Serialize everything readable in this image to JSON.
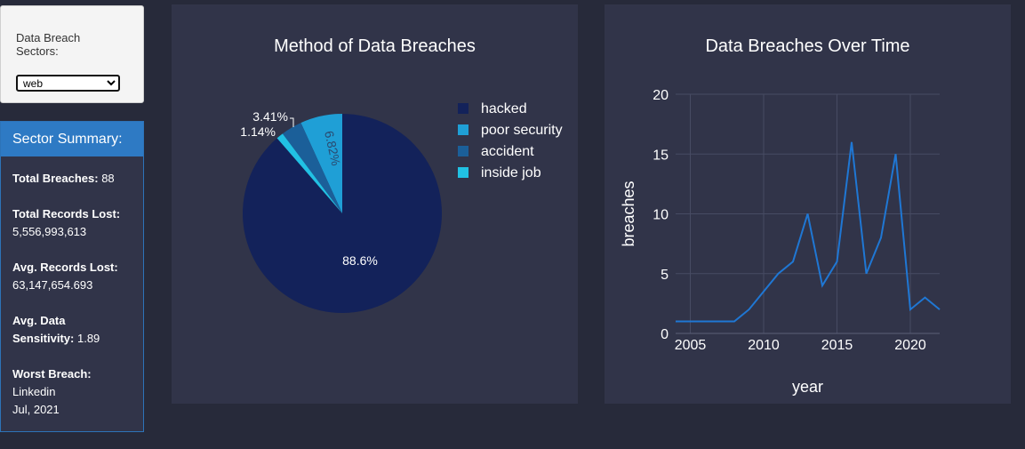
{
  "sector_selector": {
    "label": "Data Breach Sectors:",
    "options": [
      "web"
    ],
    "selected": "web"
  },
  "summary": {
    "title": "Sector Summary:",
    "total_breaches_label": "Total Breaches:",
    "total_breaches_value": "88",
    "total_records_label": "Total Records Lost:",
    "total_records_value": "5,556,993,613",
    "avg_records_label": "Avg. Records Lost:",
    "avg_records_value": "63,147,654.693",
    "avg_sensitivity_label_1": "Avg. Data",
    "avg_sensitivity_label_2": "Sensitivity:",
    "avg_sensitivity_value": "1.89",
    "worst_breach_label": "Worst Breach:",
    "worst_breach_name": "Linkedin",
    "worst_breach_date": "Jul, 2021"
  },
  "colors": {
    "background": "#272a3a",
    "panel": "#313449",
    "accent": "#2e7ac4",
    "line": "#1f77d4"
  },
  "chart_data": [
    {
      "type": "pie",
      "title": "Method of Data Breaches",
      "slices": [
        {
          "name": "hacked",
          "percent": 88.6,
          "label": "88.6%",
          "color": "#13225a"
        },
        {
          "name": "poor security",
          "percent": 6.82,
          "label": "6.82%",
          "color": "#1f9fd6"
        },
        {
          "name": "accident",
          "percent": 3.41,
          "label": "3.41%",
          "color": "#1b5f99"
        },
        {
          "name": "inside job",
          "percent": 1.14,
          "label": "1.14%",
          "color": "#21c1e4"
        }
      ],
      "legend_position": "top-right"
    },
    {
      "type": "line",
      "title": "Data Breaches Over Time",
      "xlabel": "year",
      "ylabel": "breaches",
      "x": [
        2004,
        2005,
        2006,
        2007,
        2008,
        2009,
        2010,
        2011,
        2012,
        2013,
        2014,
        2015,
        2016,
        2017,
        2018,
        2019,
        2020,
        2021,
        2022
      ],
      "y": [
        1,
        1,
        1,
        1,
        1,
        2,
        3.5,
        5,
        6,
        10,
        4,
        6,
        16,
        5,
        8,
        15,
        2,
        3,
        2
      ],
      "xlim": [
        2004,
        2022
      ],
      "ylim": [
        0,
        20
      ],
      "xticks": [
        2005,
        2010,
        2015,
        2020
      ],
      "yticks": [
        0,
        5,
        10,
        15,
        20
      ],
      "grid": true
    }
  ]
}
